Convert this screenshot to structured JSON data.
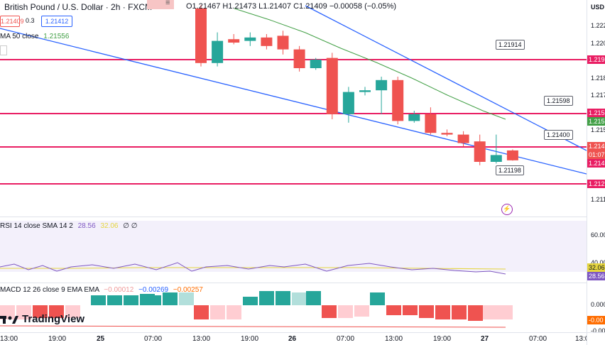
{
  "header": {
    "symbol_title": "British Pound / U.S. Dollar · 2h · FXCM",
    "ohlc_text": "O1.21467  H1.21473  L1.21407  C1.21409  −0.00058 (−0.05%)",
    "sell_price": "1.21409",
    "spread": "0.3",
    "buy_price": "1.21412",
    "ma_label": "MA 50 close",
    "ma_value": "1.21556"
  },
  "annotations": {
    "level_1": "1.21914",
    "level_2": "1.21598",
    "level_3": "1.21400",
    "level_4": "1.21198"
  },
  "price_axis": {
    "currency": "USD",
    "ticks": [
      "1.222",
      "1.220",
      "1.218",
      "1.217",
      "1.215",
      "1.212",
      "1.211"
    ],
    "tags": [
      "1.219",
      "1.215",
      "1.215",
      "1.214",
      "01:07",
      "1.214",
      "1.212"
    ],
    "rsi_ticks": [
      "60.00",
      "40.00"
    ],
    "rsi_tags": [
      "32.06",
      "28.56"
    ],
    "macd_ticks": [
      "0.000",
      "-0.00"
    ],
    "macd_tags": [
      "-0.00"
    ]
  },
  "rsi": {
    "label": "RSI 14 close SMA 14 2",
    "value1": "28.56",
    "value2": "32.06",
    "value3": "∅ ∅"
  },
  "macd": {
    "label": "MACD 12 26 close 9 EMA EMA",
    "value1": "−0.00012",
    "value2": "−0.00269",
    "value3": "−0.00257"
  },
  "time_axis": {
    "labels": [
      "13:00",
      "19:00",
      "25",
      "07:00",
      "13:00",
      "19:00",
      "26",
      "07:00",
      "13:00",
      "19:00",
      "27",
      "07:00",
      "13:0"
    ]
  },
  "branding": {
    "logo_text": "TradingView"
  },
  "colors": {
    "up": "#26a69a",
    "down": "#ef5350",
    "level_line": "#e91e63",
    "trend_line": "#2962ff",
    "ma_line": "#43a047",
    "rsi_line": "#7e57c2",
    "rsi_sma": "#e5d53f"
  },
  "candles": [
    {
      "o": 1.223,
      "h": 1.2232,
      "l": 1.2196,
      "c": 1.2198
    },
    {
      "o": 1.2198,
      "h": 1.2216,
      "l": 1.2196,
      "c": 1.2211
    },
    {
      "o": 1.2212,
      "h": 1.2215,
      "l": 1.2209,
      "c": 1.221
    },
    {
      "o": 1.2211,
      "h": 1.2216,
      "l": 1.2208,
      "c": 1.2213
    },
    {
      "o": 1.2213,
      "h": 1.2215,
      "l": 1.2206,
      "c": 1.2208
    },
    {
      "o": 1.2214,
      "h": 1.2217,
      "l": 1.2203,
      "c": 1.2206
    },
    {
      "o": 1.2206,
      "h": 1.2208,
      "l": 1.2193,
      "c": 1.2195
    },
    {
      "o": 1.2195,
      "h": 1.2201,
      "l": 1.2194,
      "c": 1.22
    },
    {
      "o": 1.2201,
      "h": 1.2204,
      "l": 1.2165,
      "c": 1.2168
    },
    {
      "o": 1.2168,
      "h": 1.2184,
      "l": 1.2163,
      "c": 1.2181
    },
    {
      "o": 1.2181,
      "h": 1.2184,
      "l": 1.2179,
      "c": 1.2182
    },
    {
      "o": 1.2182,
      "h": 1.219,
      "l": 1.2168,
      "c": 1.2188
    },
    {
      "o": 1.2188,
      "h": 1.219,
      "l": 1.2162,
      "c": 1.2164
    },
    {
      "o": 1.2164,
      "h": 1.217,
      "l": 1.2163,
      "c": 1.2168
    },
    {
      "o": 1.2168,
      "h": 1.2172,
      "l": 1.2156,
      "c": 1.2157
    },
    {
      "o": 1.2157,
      "h": 1.2159,
      "l": 1.2155,
      "c": 1.2156
    },
    {
      "o": 1.2156,
      "h": 1.2158,
      "l": 1.2149,
      "c": 1.2151
    },
    {
      "o": 1.2152,
      "h": 1.2156,
      "l": 1.2138,
      "c": 1.214
    },
    {
      "o": 1.214,
      "h": 1.2156,
      "l": 1.2139,
      "c": 1.2144
    },
    {
      "o": 1.21467,
      "h": 1.21473,
      "l": 1.21407,
      "c": 1.21409
    }
  ]
}
